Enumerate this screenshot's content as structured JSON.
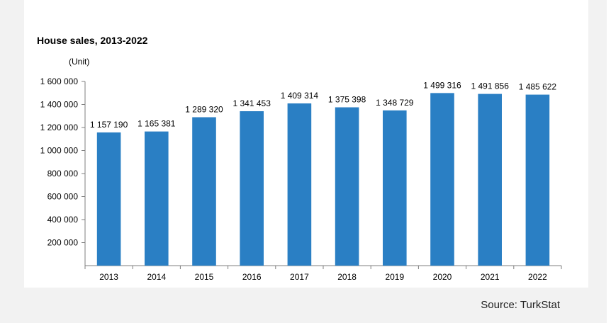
{
  "source": "Source: TurkStat",
  "chart_data": {
    "type": "bar",
    "title": "House sales, 2013-2022",
    "unit_label": "(Unit)",
    "xlabel": "",
    "ylabel": "",
    "categories": [
      "2013",
      "2014",
      "2015",
      "2016",
      "2017",
      "2018",
      "2019",
      "2020",
      "2021",
      "2022"
    ],
    "values": [
      1157190,
      1165381,
      1289320,
      1341453,
      1409314,
      1375398,
      1348729,
      1499316,
      1491856,
      1485622
    ],
    "value_labels": [
      "1 157 190",
      "1 165 381",
      "1 289 320",
      "1 341 453",
      "1 409 314",
      "1 375 398",
      "1 348 729",
      "1 499 316",
      "1 491 856",
      "1 485 622"
    ],
    "ylim": [
      0,
      1600000
    ],
    "yticks": [
      200000,
      400000,
      600000,
      800000,
      1000000,
      1200000,
      1400000,
      1600000
    ],
    "ytick_labels": [
      "200 000",
      "400 000",
      "600 000",
      "800 000",
      "1 000 000",
      "1 200 000",
      "1 400 000",
      "1 600 000"
    ],
    "grid": false,
    "legend": "none",
    "bar_color": "#2a7fc4"
  }
}
